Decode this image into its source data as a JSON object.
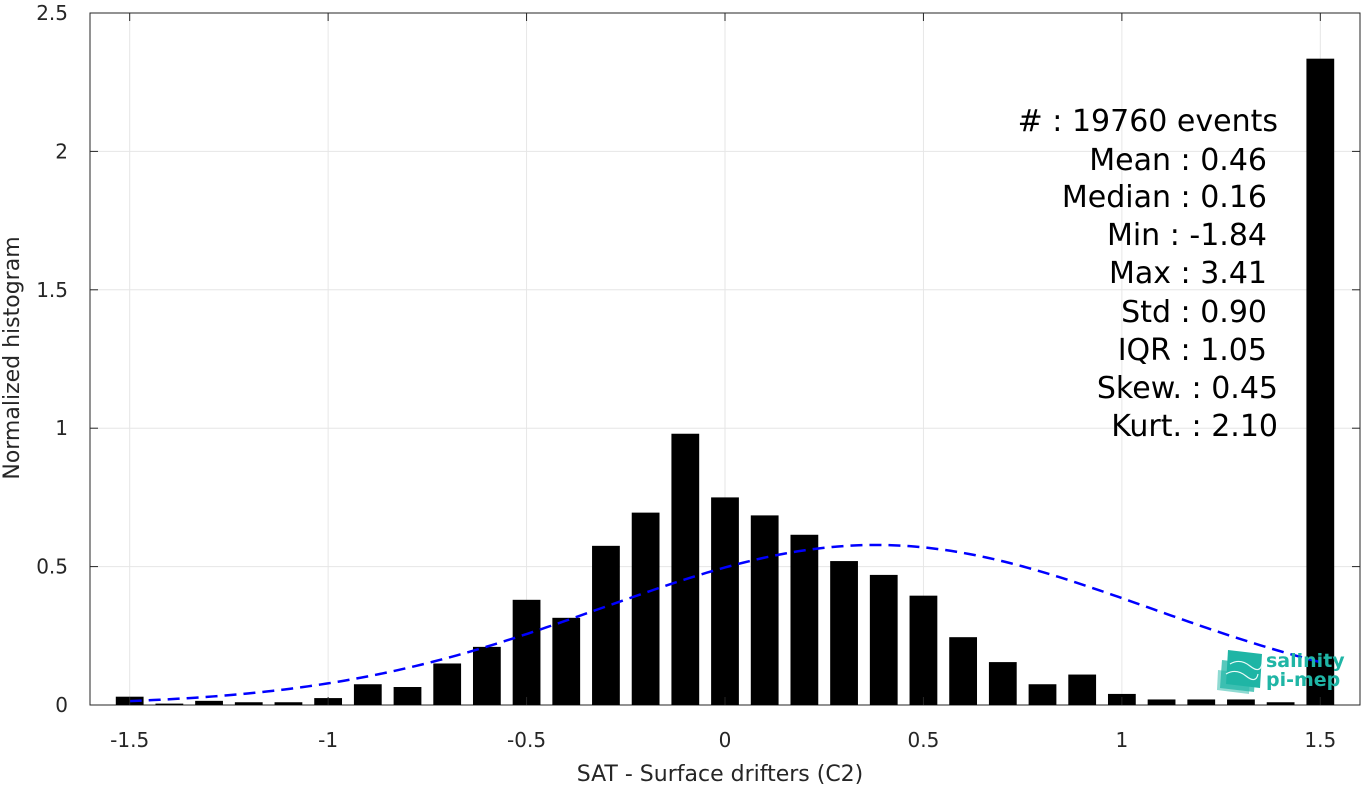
{
  "chart_data": {
    "type": "bar",
    "title": "",
    "xlabel": "SAT - Surface drifters (C2)",
    "ylabel": "Normalized histogram",
    "xlim": [
      -1.6,
      1.6
    ],
    "ylim": [
      0,
      2.5
    ],
    "grid": true,
    "bar_color": "#000000",
    "fit_color": "#0000ff",
    "x_ticks": [
      "-1.5",
      "-1",
      "-0.5",
      "0",
      "0.5",
      "1",
      "1.5"
    ],
    "y_ticks": [
      "0",
      "0.5",
      "1",
      "1.5",
      "2",
      "2.5"
    ],
    "bin_centers": [
      -1.5,
      -1.4,
      -1.3,
      -1.2,
      -1.1,
      -1.0,
      -0.9,
      -0.8,
      -0.7,
      -0.6,
      -0.5,
      -0.4,
      -0.3,
      -0.2,
      -0.1,
      0.0,
      0.1,
      0.2,
      0.3,
      0.4,
      0.5,
      0.6,
      0.7,
      0.8,
      0.9,
      1.0,
      1.1,
      1.2,
      1.3,
      1.4,
      1.5
    ],
    "values": [
      0.03,
      0.005,
      0.015,
      0.01,
      0.01,
      0.025,
      0.075,
      0.065,
      0.15,
      0.21,
      0.38,
      0.315,
      0.575,
      0.695,
      0.98,
      0.75,
      0.685,
      0.615,
      0.52,
      0.47,
      0.395,
      0.245,
      0.155,
      0.075,
      0.11,
      0.04,
      0.02,
      0.02,
      0.02,
      0.01,
      2.335
    ],
    "fit": {
      "type": "normal",
      "style": "dashed",
      "mean": 0.38,
      "std": 0.69,
      "x_range": [
        -1.5,
        1.5
      ]
    },
    "annotations": [
      "#  : 19760 events",
      "Mean : 0.46",
      "Median : 0.16",
      "Min : -1.84",
      "Max : 3.41",
      "Std : 0.90",
      "IQR : 1.05",
      "Skew. : 0.45",
      "Kurt. : 2.10"
    ]
  },
  "logo": {
    "line1": "salinity",
    "line2": "pi-mep",
    "color": "#1fb5a5",
    "icon": "salinity-pimep-logo-icon"
  }
}
